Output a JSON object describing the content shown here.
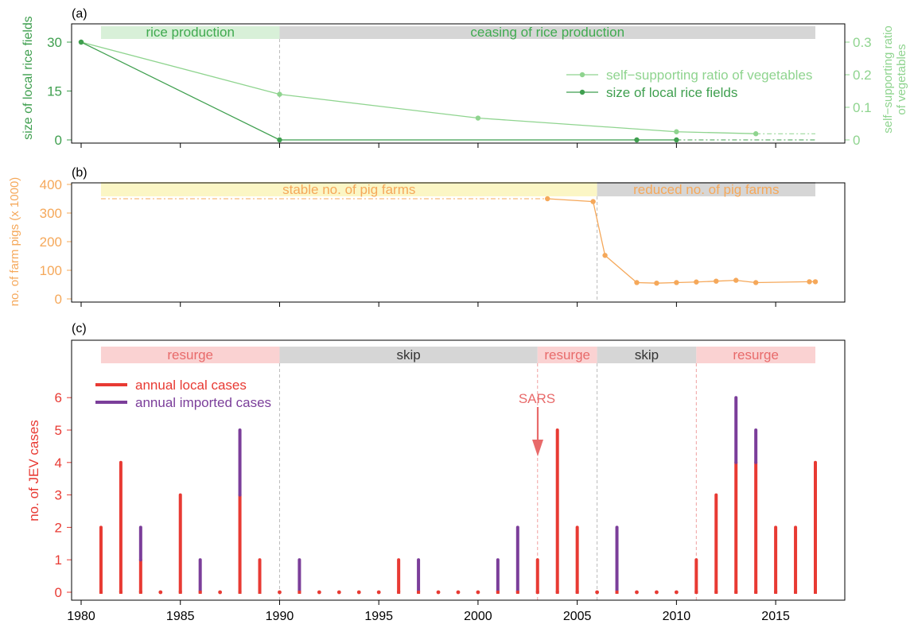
{
  "colors": {
    "green_light": "#8fd48f",
    "green_dark": "#3f9f4f",
    "green_text": "#3faa4f",
    "orange": "#f5a85a",
    "red": "#e83a33",
    "purple": "#7b3e9a",
    "gray_band": "#d6d6d6",
    "green_band": "#d8f0d8",
    "yellow_band": "#fbf6c5",
    "pink_band": "#fad2d2",
    "red_band_text": "#e86a6a",
    "gray_dashed": "#bbbbbb",
    "pink_dashed": "#f0a0a0"
  },
  "x_axis": {
    "ticks": [
      1980,
      1985,
      1990,
      1995,
      2000,
      2005,
      2010,
      2015
    ],
    "labels": [
      "1980",
      "1985",
      "1990",
      "1995",
      "2000",
      "2005",
      "2010",
      "2015"
    ]
  },
  "chart_data": [
    {
      "type": "line",
      "panel_label": "(a)",
      "xlim": [
        1980,
        2017
      ],
      "ylim_left": [
        0,
        30
      ],
      "ylim_right": [
        0,
        0.3
      ],
      "ylabel": "size of local rice fields",
      "ylabel_right_line1": "self−supporting ratio",
      "ylabel_right_line2": "of vegetables",
      "yticks_left": [
        "0",
        "15",
        "30"
      ],
      "yticks_right": [
        "0",
        "0.1",
        "0.2",
        "0.3"
      ],
      "bands": [
        {
          "label": "rice production",
          "start": 1981,
          "end": 1990,
          "color": "green"
        },
        {
          "label": "ceasing of rice production",
          "start": 1990,
          "end": 2017,
          "color": "gray"
        }
      ],
      "series": [
        {
          "name": "self−supporting ratio of vegetables",
          "axis": "right",
          "x": [
            1980,
            1990,
            2000,
            2010,
            2014
          ],
          "y": [
            0.3,
            0.14,
            0.067,
            0.025,
            0.019
          ],
          "dashed_to": 2017
        },
        {
          "name": "size of local rice fields",
          "axis": "left",
          "x": [
            1980,
            1990,
            2008,
            2010
          ],
          "y": [
            30,
            0,
            0,
            0
          ],
          "dashed_to": 2017
        }
      ]
    },
    {
      "type": "line",
      "panel_label": "(b)",
      "xlim": [
        1980,
        2017
      ],
      "ylim": [
        0,
        400
      ],
      "ylabel": "no. of farm pigs (x 1000)",
      "yticks": [
        "0",
        "100",
        "200",
        "300",
        "400"
      ],
      "bands": [
        {
          "label": "stable no. of pig farms",
          "start": 1981,
          "end": 2006,
          "color": "yellow"
        },
        {
          "label": "reduced no. of pig farms",
          "start": 2006,
          "end": 2017,
          "color": "gray"
        }
      ],
      "series": [
        {
          "x": [
            2003.5,
            2005.8,
            2006.4,
            2008,
            2009,
            2010,
            2011,
            2012,
            2013,
            2014,
            2016.7,
            2017
          ],
          "y": [
            350,
            340,
            152,
            57,
            55,
            57,
            59,
            62,
            65,
            57,
            60,
            60
          ],
          "dashed_from": 1981,
          "dashed_value": 350
        }
      ]
    },
    {
      "type": "bar",
      "panel_label": "(c)",
      "xlim": [
        1980,
        2017
      ],
      "ylim": [
        0,
        6
      ],
      "ylabel": "no. of JEV cases",
      "yticks": [
        "0",
        "1",
        "2",
        "3",
        "4",
        "5",
        "6"
      ],
      "bands": [
        {
          "label": "resurge",
          "start": 1981,
          "end": 1990,
          "color": "pink"
        },
        {
          "label": "skip",
          "start": 1990,
          "end": 2003,
          "color": "gray"
        },
        {
          "label": "resurge",
          "start": 2003,
          "end": 2006,
          "color": "pink"
        },
        {
          "label": "skip",
          "start": 2006,
          "end": 2011,
          "color": "gray"
        },
        {
          "label": "resurge",
          "start": 2011,
          "end": 2017,
          "color": "pink"
        }
      ],
      "annotation": {
        "label": "SARS",
        "x": 2003
      },
      "legend": [
        "annual local cases",
        "annual imported cases"
      ],
      "years": [
        1981,
        1982,
        1983,
        1984,
        1985,
        1986,
        1987,
        1988,
        1989,
        1990,
        1991,
        1992,
        1993,
        1994,
        1995,
        1996,
        1997,
        1998,
        1999,
        2000,
        2001,
        2002,
        2003,
        2004,
        2005,
        2006,
        2007,
        2008,
        2009,
        2010,
        2011,
        2012,
        2013,
        2014,
        2015,
        2016,
        2017
      ],
      "series": [
        {
          "name": "annual local cases",
          "values": [
            2,
            4,
            1,
            0,
            3,
            0,
            0,
            3,
            1,
            0,
            0,
            0,
            0,
            0,
            0,
            1,
            0,
            0,
            0,
            0,
            0,
            0,
            1,
            5,
            2,
            0,
            0,
            0,
            0,
            0,
            1,
            3,
            4,
            4,
            2,
            2,
            4
          ]
        },
        {
          "name": "annual imported cases",
          "values": [
            0,
            0,
            1,
            0,
            0,
            1,
            0,
            2,
            0,
            0,
            1,
            0,
            0,
            0,
            0,
            0,
            1,
            0,
            0,
            0,
            1,
            2,
            0,
            0,
            0,
            0,
            2,
            0,
            0,
            0,
            0,
            0,
            2,
            1,
            0,
            0,
            0
          ]
        }
      ]
    }
  ]
}
